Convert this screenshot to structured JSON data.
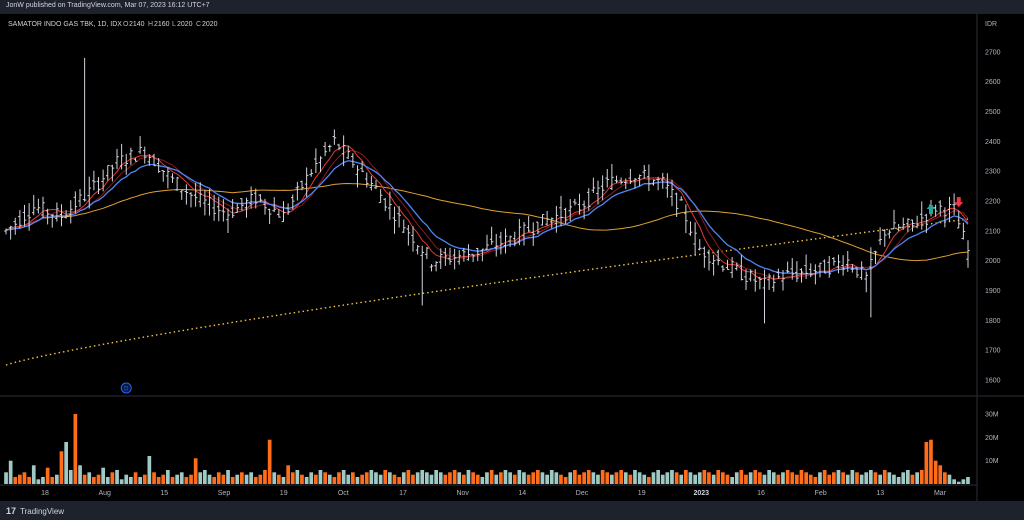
{
  "header": {
    "published": "JonW published on TradingView.com, Mar 07, 2023 16:12 UTC+7"
  },
  "footer": {
    "brand": "TradingView",
    "logo": "tradingview-logo-icon"
  },
  "legend": {
    "symbol": "SAMATOR INDO GAS TBK, 1D, IDX",
    "o_label": "O",
    "o": "2140",
    "h_label": "H",
    "h": "2160",
    "l_label": "L",
    "l": "2020",
    "c_label": "C",
    "c": "2020"
  },
  "colors": {
    "background": "#000000",
    "bar": "#d1d4dc",
    "ma_fast": "#e53935",
    "ma_slow": "#8b1a1a",
    "ema_blue": "#4f86f7",
    "sma_orange": "#e0a030",
    "sma_dotted": "#f5c242",
    "vol_up": "#9fc9c4",
    "vol_down": "#ff6d1a",
    "arrow_up": "#26a69a",
    "arrow_down": "#f23645"
  },
  "chart_data": {
    "type": "ohlc",
    "currency": "IDR",
    "ylim": [
      1560,
      2760
    ],
    "y_ticks": [
      1600,
      1700,
      1800,
      1900,
      2000,
      2100,
      2200,
      2300,
      2400,
      2500,
      2600,
      2700
    ],
    "x_ticks": [
      "18",
      "Aug",
      "15",
      "Sep",
      "19",
      "Oct",
      "17",
      "Nov",
      "14",
      "Dec",
      "19",
      "2023",
      "16",
      "Feb",
      "13",
      "Mar"
    ],
    "bold_x_ticks": [
      "2023"
    ],
    "price_keypoints": [
      [
        0,
        2100
      ],
      [
        6,
        2180
      ],
      [
        12,
        2150
      ],
      [
        18,
        2230
      ],
      [
        24,
        2330
      ],
      [
        30,
        2370
      ],
      [
        36,
        2270
      ],
      [
        42,
        2200
      ],
      [
        48,
        2160
      ],
      [
        54,
        2210
      ],
      [
        60,
        2150
      ],
      [
        66,
        2300
      ],
      [
        71,
        2400
      ],
      [
        75,
        2330
      ],
      [
        80,
        2240
      ],
      [
        84,
        2160
      ],
      [
        88,
        2080
      ],
      [
        92,
        2000
      ],
      [
        96,
        2010
      ],
      [
        102,
        2030
      ],
      [
        110,
        2080
      ],
      [
        116,
        2130
      ],
      [
        124,
        2180
      ],
      [
        130,
        2260
      ],
      [
        136,
        2290
      ],
      [
        142,
        2260
      ],
      [
        146,
        2180
      ],
      [
        150,
        2040
      ],
      [
        155,
        1990
      ],
      [
        160,
        1950
      ],
      [
        164,
        1920
      ],
      [
        168,
        1950
      ],
      [
        172,
        1960
      ],
      [
        176,
        1970
      ],
      [
        182,
        2000
      ],
      [
        186,
        1940
      ],
      [
        190,
        2100
      ],
      [
        196,
        2120
      ],
      [
        201,
        2180
      ],
      [
        205,
        2170
      ],
      [
        208,
        2030
      ]
    ],
    "spikes": {
      "17": 2680,
      "90": 1850,
      "164": 1790,
      "187": 1810
    },
    "sma200_start": 1650,
    "sma200_end": 2140,
    "volume": {
      "y_ticks": [
        "10M",
        "20M",
        "30M"
      ],
      "bars_millions": [
        5,
        10,
        3,
        4,
        5,
        3,
        8,
        2,
        3,
        7,
        3,
        4,
        14,
        18,
        6,
        30,
        8,
        4,
        5,
        3,
        4,
        7,
        3,
        5,
        6,
        2,
        4,
        3,
        5,
        3,
        4,
        12,
        5,
        3,
        4,
        6,
        3,
        4,
        5,
        3,
        4,
        11,
        5,
        6,
        4,
        3,
        5,
        4,
        6,
        3,
        4,
        5,
        4,
        5,
        3,
        4,
        6,
        19,
        5,
        4,
        3,
        8,
        5,
        6,
        4,
        3,
        5,
        4,
        6,
        5,
        4,
        3,
        5,
        6,
        4,
        5,
        3,
        4,
        5,
        6,
        5,
        4,
        6,
        5,
        4,
        3,
        5,
        6,
        4,
        5,
        6,
        5,
        4,
        6,
        5,
        4,
        5,
        6,
        5,
        4,
        6,
        5,
        4,
        3,
        5,
        6,
        4,
        5,
        6,
        5,
        4,
        6,
        5,
        4,
        5,
        6,
        5,
        4,
        6,
        5,
        4,
        3,
        5,
        6,
        4,
        5,
        6,
        5,
        4,
        6,
        5,
        4,
        5,
        6,
        5,
        4,
        6,
        5,
        4,
        3,
        5,
        6,
        4,
        5,
        6,
        5,
        4,
        6,
        5,
        4,
        5,
        6,
        5,
        4,
        6,
        5,
        4,
        3,
        5,
        6,
        4,
        5,
        6,
        5,
        4,
        6,
        5,
        4,
        5,
        6,
        5,
        4,
        6,
        5,
        4,
        3,
        5,
        6,
        4,
        5,
        6,
        5,
        4,
        6,
        5,
        4,
        5,
        6,
        5,
        4,
        6,
        5,
        4,
        3,
        5,
        6,
        4,
        5,
        6,
        18,
        19,
        10,
        8,
        5,
        4,
        2,
        1,
        2,
        3
      ]
    },
    "markers": [
      {
        "type": "up-arrow",
        "bar": 200,
        "price": 2170
      },
      {
        "type": "down-arrow",
        "bar": 206,
        "price": 2200
      }
    ],
    "event_badge": {
      "label": "D",
      "bar": 26
    }
  }
}
